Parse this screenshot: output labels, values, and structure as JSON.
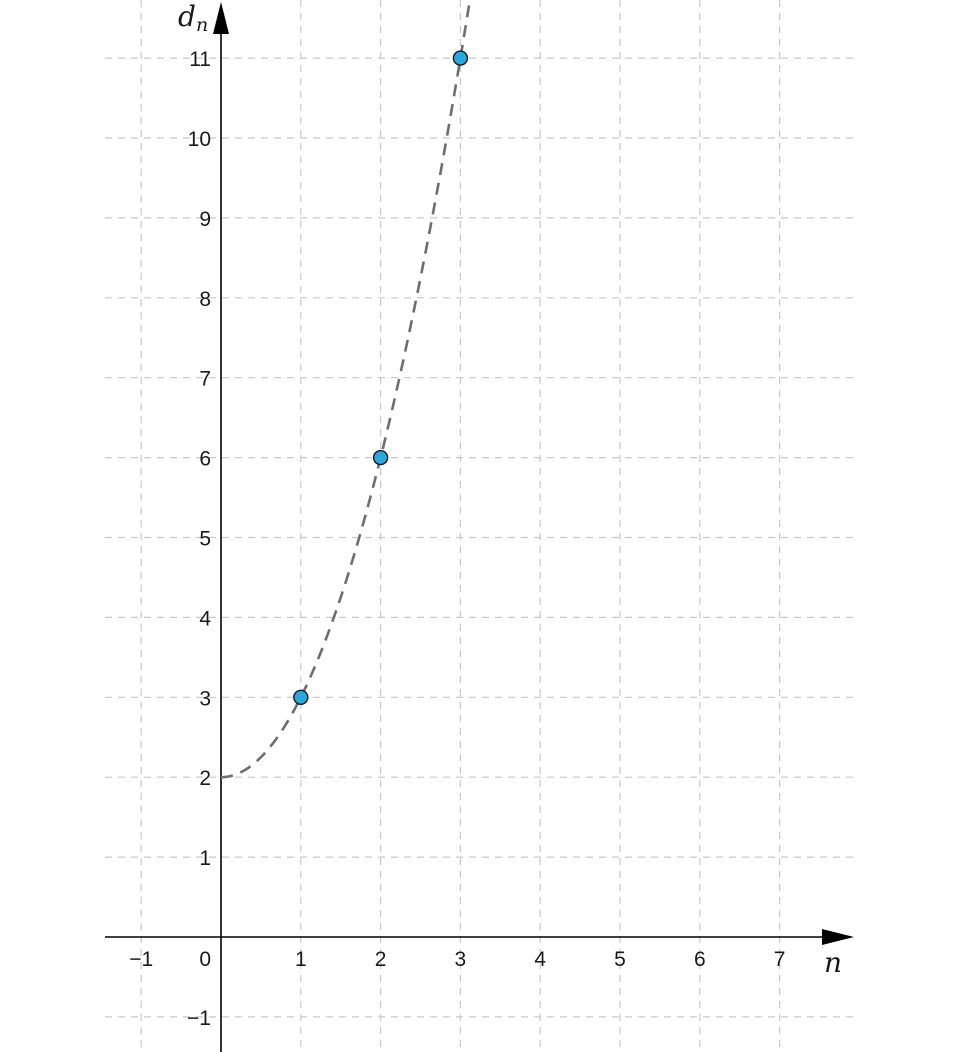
{
  "chart_data": {
    "type": "scatter",
    "title": "",
    "xlabel": "n",
    "ylabel": {
      "base": "d",
      "subscript": "n"
    },
    "xlim": [
      -1.45,
      7.95
    ],
    "ylim": [
      -1.45,
      11.7
    ],
    "x_ticks": [
      {
        "value": -1,
        "label": "−1"
      },
      {
        "value": 0,
        "label": "0"
      },
      {
        "value": 1,
        "label": "1"
      },
      {
        "value": 2,
        "label": "2"
      },
      {
        "value": 3,
        "label": "3"
      },
      {
        "value": 4,
        "label": "4"
      },
      {
        "value": 5,
        "label": "5"
      },
      {
        "value": 6,
        "label": "6"
      },
      {
        "value": 7,
        "label": "7"
      }
    ],
    "y_ticks": [
      {
        "value": -1,
        "label": "−1"
      },
      {
        "value": 1,
        "label": "1"
      },
      {
        "value": 2,
        "label": "2"
      },
      {
        "value": 3,
        "label": "3"
      },
      {
        "value": 4,
        "label": "4"
      },
      {
        "value": 5,
        "label": "5"
      },
      {
        "value": 6,
        "label": "6"
      },
      {
        "value": 7,
        "label": "7"
      },
      {
        "value": 8,
        "label": "8"
      },
      {
        "value": 9,
        "label": "9"
      },
      {
        "value": 10,
        "label": "10"
      },
      {
        "value": 11,
        "label": "11"
      }
    ],
    "grid": true,
    "points": [
      {
        "x": 1,
        "y": 3
      },
      {
        "x": 2,
        "y": 6
      },
      {
        "x": 3,
        "y": 11
      }
    ],
    "curve": {
      "style": "dashed",
      "x_range": [
        0,
        3.15
      ],
      "samples": [
        {
          "x": 0,
          "y": 2
        },
        {
          "x": 1,
          "y": 3
        },
        {
          "x": 2,
          "y": 6
        },
        {
          "x": 3,
          "y": 11
        }
      ]
    },
    "colors": {
      "point_fill": "#29a8e0",
      "point_stroke": "#1a1a1a",
      "curve": "#6e6e6e",
      "grid": "#c8c8c8",
      "axis": "#000000"
    }
  }
}
